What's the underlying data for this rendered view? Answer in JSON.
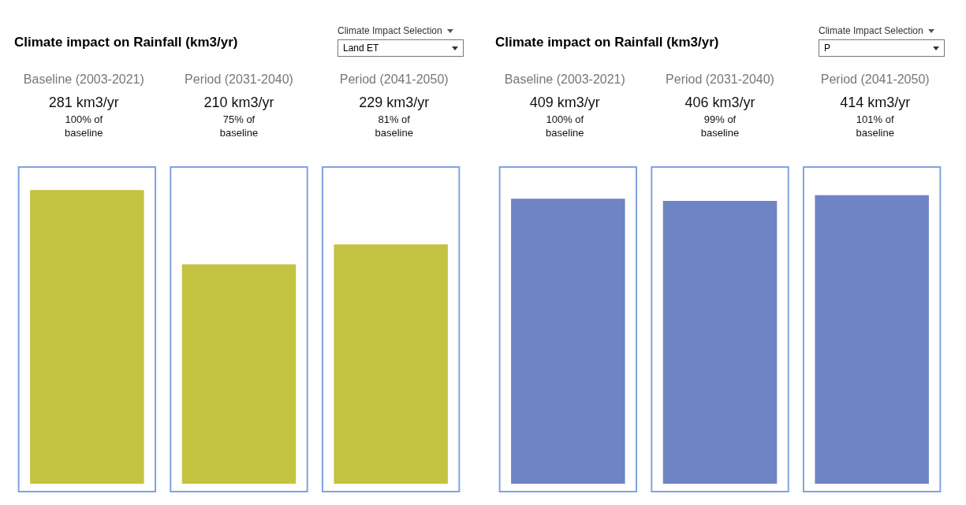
{
  "chart_data": [
    {
      "type": "bar",
      "title": "Climate impact on Rainfall (km3/yr)",
      "legend_title": "Climate Impact Selection",
      "subtitle": "Land ET",
      "categories": [
        "Baseline (2003-2021)",
        "Period (2031-2040)",
        "Period (2041-2050)"
      ],
      "values": [
        281,
        210,
        229
      ],
      "color": "#c3c341",
      "value_labels": [
        "281 km3/yr",
        "210 km3/yr",
        "229 km3/yr"
      ],
      "annotations": [
        "100% of baseline",
        "75% of baseline",
        "81% of baseline"
      ]
    },
    {
      "type": "bar",
      "title": "Climate impact on Rainfall (km3/yr)",
      "legend_title": "Climate Impact Selection",
      "subtitle": "P",
      "categories": [
        "Baseline (2003-2021)",
        "Period (2031-2040)",
        "Period (2041-2050)"
      ],
      "values": [
        409,
        406,
        414
      ],
      "color": "#6f84c4",
      "value_labels": [
        "409 km3/yr",
        "406 km3/yr",
        "414 km3/yr"
      ],
      "annotations": [
        "100% of baseline",
        "99% of baseline",
        "101% of baseline"
      ]
    }
  ]
}
